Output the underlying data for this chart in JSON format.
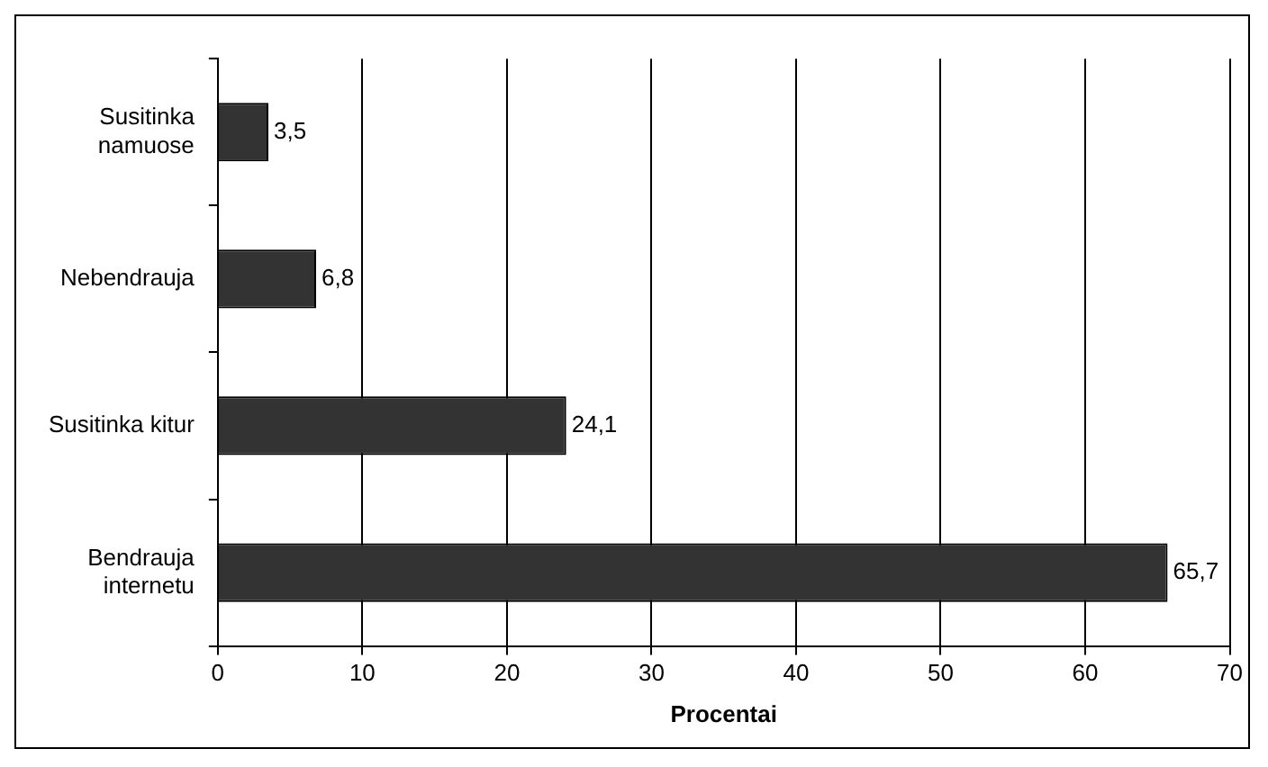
{
  "chart_data": {
    "type": "bar",
    "orientation": "horizontal",
    "xlabel": "Procentai",
    "categories": [
      "Susitinka namuose",
      "Nebendrauja",
      "Susitinka kitur",
      "Bendrauja internetu"
    ],
    "values": [
      3.5,
      6.8,
      24.1,
      65.7
    ],
    "value_labels": [
      "3,5",
      "6,8",
      "24,1",
      "65,7"
    ],
    "color": "#333333",
    "xlim": [
      0,
      70
    ],
    "xticks": [
      0,
      10,
      20,
      30,
      40,
      50,
      60,
      70
    ],
    "grid": "x",
    "legend": false
  }
}
